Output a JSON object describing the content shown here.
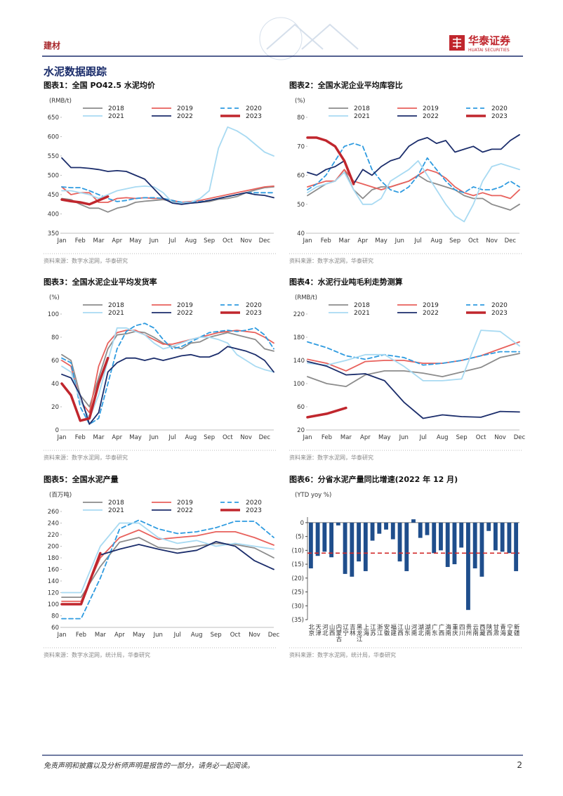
{
  "header": {
    "section": "建材",
    "logo": "华泰证券",
    "logo_en": "HUATAI SECURITIES"
  },
  "heading": "水泥数据跟踪",
  "chart_data": [
    {
      "type": "line",
      "title": "图表1：全国 PO42.5 水泥均价",
      "unit": "(RMB/t)",
      "source": "资料来源：数字水泥网，华泰研究",
      "categories": [
        "Jan",
        null,
        "Feb",
        null,
        "Mar",
        null,
        "Apr",
        null,
        "May",
        null,
        "Jun",
        null,
        "Jul",
        null,
        "Aug",
        null,
        "Sep",
        null,
        "Oct",
        null,
        "Nov",
        null,
        "Dec",
        null
      ],
      "ylim": [
        350,
        650
      ],
      "yticks": [
        350,
        400,
        450,
        500,
        550,
        600,
        650
      ],
      "series": [
        {
          "name": "2018",
          "color": "#8c8c8c",
          "values": [
            440,
            437,
            425,
            415,
            415,
            405,
            415,
            420,
            430,
            433,
            435,
            437,
            432,
            428,
            428,
            430,
            432,
            438,
            440,
            445,
            455,
            462,
            468,
            470
          ]
        },
        {
          "name": "2019",
          "color": "#e8615c",
          "values": [
            470,
            450,
            455,
            455,
            430,
            430,
            440,
            442,
            440,
            442,
            440,
            440,
            435,
            430,
            432,
            435,
            440,
            445,
            450,
            455,
            460,
            465,
            470,
            472
          ]
        },
        {
          "name": "2020",
          "color": "#2e9be0",
          "dashed": true,
          "values": [
            470,
            468,
            468,
            460,
            450,
            440,
            432,
            435,
            440,
            442,
            442,
            440,
            435,
            430,
            430,
            432,
            435,
            440,
            445,
            450,
            455,
            455,
            455,
            455
          ]
        },
        {
          "name": "2021",
          "color": "#a8daf2",
          "values": [
            460,
            460,
            455,
            450,
            440,
            450,
            460,
            465,
            470,
            472,
            470,
            455,
            430,
            428,
            430,
            440,
            460,
            570,
            625,
            615,
            600,
            580,
            560,
            550
          ]
        },
        {
          "name": "2022",
          "color": "#1b2d6b",
          "values": [
            545,
            520,
            520,
            518,
            515,
            510,
            512,
            510,
            500,
            490,
            465,
            440,
            428,
            425,
            428,
            430,
            435,
            440,
            445,
            450,
            455,
            450,
            448,
            442
          ]
        },
        {
          "name": "2023",
          "color": "#c0262d",
          "bold": true,
          "values": [
            437,
            433,
            430,
            425,
            435,
            445,
            null,
            null,
            null,
            null,
            null,
            null,
            null,
            null,
            null,
            null,
            null,
            null,
            null,
            null,
            null,
            null,
            null,
            null
          ]
        }
      ]
    },
    {
      "type": "line",
      "title": "图表2：全国水泥企业平均库容比",
      "unit": "(%)",
      "source": "资料来源：数字水泥网，华泰研究",
      "categories": [
        "Jan",
        null,
        "Feb",
        null,
        "Mar",
        null,
        "Apr",
        null,
        "May",
        null,
        "Jun",
        null,
        "Jul",
        null,
        "Aug",
        null,
        "Sep",
        null,
        "Oct",
        null,
        "Nov",
        null,
        "Dec",
        null
      ],
      "ylim": [
        40,
        80
      ],
      "yticks": [
        40,
        50,
        60,
        70,
        80
      ],
      "series": [
        {
          "name": "2018",
          "color": "#8c8c8c",
          "values": [
            53,
            55,
            57,
            58,
            62,
            55,
            52,
            55,
            56,
            56,
            57,
            58,
            60,
            58,
            57,
            56,
            55,
            53,
            52,
            52,
            50,
            49,
            48,
            50
          ]
        },
        {
          "name": "2019",
          "color": "#e8615c",
          "values": [
            56,
            57,
            58,
            58,
            62,
            58,
            57,
            56,
            55,
            56,
            57,
            58,
            60,
            62,
            61,
            59,
            56,
            54,
            53,
            54,
            53,
            53,
            52,
            55
          ]
        },
        {
          "name": "2020",
          "color": "#2e9be0",
          "dashed": true,
          "values": [
            55,
            57,
            60,
            65,
            70,
            71,
            70,
            62,
            58,
            55,
            54,
            56,
            60,
            66,
            62,
            58,
            55,
            54,
            56,
            55,
            55,
            56,
            58,
            56
          ]
        },
        {
          "name": "2021",
          "color": "#a8daf2",
          "values": [
            54,
            56,
            57,
            58,
            61,
            55,
            50,
            50,
            52,
            58,
            60,
            62,
            65,
            60,
            55,
            50,
            46,
            44,
            50,
            58,
            63,
            64,
            63,
            62
          ]
        },
        {
          "name": "2022",
          "color": "#1b2d6b",
          "values": [
            61,
            60,
            62,
            63,
            65,
            57,
            62,
            60,
            63,
            65,
            66,
            70,
            72,
            73,
            71,
            72,
            68,
            69,
            70,
            68,
            69,
            69,
            72,
            74
          ]
        },
        {
          "name": "2023",
          "color": "#c0262d",
          "bold": true,
          "values": [
            73,
            73,
            72,
            70,
            65,
            57,
            null,
            null,
            null,
            null,
            null,
            null,
            null,
            null,
            null,
            null,
            null,
            null,
            null,
            null,
            null,
            null,
            null,
            null
          ]
        }
      ]
    },
    {
      "type": "line",
      "title": "图表3：全国水泥企业平均发货率",
      "unit": "(%)",
      "source": "资料来源：数字水泥网，华泰研究",
      "categories": [
        "Jan",
        null,
        "Feb",
        null,
        "Mar",
        null,
        "Apr",
        null,
        "May",
        null,
        "Jun",
        null,
        "Jul",
        null,
        "Aug",
        null,
        "Sep",
        null,
        "Oct",
        null,
        "Nov",
        null,
        "Dec",
        null
      ],
      "ylim": [
        0,
        100
      ],
      "yticks": [
        0,
        20,
        40,
        60,
        80,
        100
      ],
      "series": [
        {
          "name": "2018",
          "color": "#8c8c8c",
          "values": [
            65,
            60,
            30,
            20,
            45,
            70,
            82,
            83,
            85,
            84,
            80,
            75,
            72,
            70,
            75,
            76,
            80,
            82,
            84,
            82,
            80,
            78,
            70,
            68
          ]
        },
        {
          "name": "2019",
          "color": "#e8615c",
          "values": [
            60,
            55,
            25,
            15,
            55,
            75,
            84,
            86,
            86,
            82,
            78,
            74,
            74,
            76,
            78,
            80,
            82,
            84,
            85,
            86,
            85,
            84,
            80,
            75
          ]
        },
        {
          "name": "2020",
          "color": "#2e9be0",
          "dashed": true,
          "values": [
            62,
            58,
            20,
            5,
            10,
            40,
            70,
            85,
            90,
            92,
            88,
            78,
            70,
            72,
            76,
            80,
            84,
            85,
            86,
            85,
            86,
            88,
            82,
            70
          ]
        },
        {
          "name": "2021",
          "color": "#a8daf2",
          "values": [
            55,
            50,
            25,
            10,
            30,
            60,
            88,
            88,
            85,
            82,
            75,
            70,
            72,
            75,
            78,
            80,
            80,
            78,
            75,
            65,
            60,
            55,
            52,
            50
          ]
        },
        {
          "name": "2022",
          "color": "#1b2d6b",
          "values": [
            48,
            45,
            30,
            5,
            15,
            50,
            58,
            62,
            62,
            60,
            62,
            60,
            62,
            64,
            65,
            63,
            63,
            66,
            72,
            70,
            68,
            65,
            60,
            50
          ]
        },
        {
          "name": "2023",
          "color": "#c0262d",
          "bold": true,
          "values": [
            40,
            30,
            8,
            10,
            40,
            62,
            null,
            null,
            null,
            null,
            null,
            null,
            null,
            null,
            null,
            null,
            null,
            null,
            null,
            null,
            null,
            null,
            null,
            null
          ]
        }
      ]
    },
    {
      "type": "line",
      "title": "图表4：水泥行业吨毛利走势测算",
      "unit": "(RMB/t)",
      "source": "资料来源：数字水泥网，华泰研究",
      "categories": [
        "Jan",
        "Feb",
        "Mar",
        "Apr",
        "May",
        "Jun",
        "Jul",
        "Aug",
        "Sep",
        "Oct",
        "Nov",
        "Dec"
      ],
      "ylim": [
        20,
        220
      ],
      "yticks": [
        20,
        60,
        100,
        140,
        180,
        220
      ],
      "series": [
        {
          "name": "2018",
          "color": "#8c8c8c",
          "values": [
            112,
            100,
            95,
            115,
            122,
            122,
            118,
            112,
            120,
            128,
            145,
            152
          ]
        },
        {
          "name": "2019",
          "color": "#e8615c",
          "values": [
            142,
            135,
            122,
            138,
            140,
            140,
            135,
            135,
            140,
            148,
            160,
            172
          ]
        },
        {
          "name": "2020",
          "color": "#2e9be0",
          "dashed": true,
          "values": [
            172,
            162,
            148,
            142,
            150,
            145,
            132,
            135,
            140,
            148,
            155,
            155
          ]
        },
        {
          "name": "2021",
          "color": "#a8daf2",
          "values": [
            135,
            132,
            140,
            150,
            150,
            130,
            105,
            105,
            108,
            192,
            190,
            165
          ]
        },
        {
          "name": "2022",
          "color": "#1b2d6b",
          "values": [
            138,
            130,
            115,
            117,
            105,
            68,
            40,
            46,
            43,
            42,
            52,
            51
          ]
        },
        {
          "name": "2023",
          "color": "#c0262d",
          "bold": true,
          "values": [
            42,
            48,
            58,
            null,
            null,
            null,
            null,
            null,
            null,
            null,
            null,
            null
          ]
        }
      ]
    },
    {
      "type": "line",
      "title": "图表5：全国水泥产量",
      "unit": "(百万吨)",
      "source": "资料来源：数字水泥网，统计局，华泰研究",
      "categories": [
        "Jan",
        "Feb",
        "Mar",
        "Apr",
        "May",
        "Jun",
        "Jul",
        "Aug",
        "Sep",
        "Oct",
        "Nov",
        "Dec"
      ],
      "ylim": [
        60,
        260
      ],
      "yticks": [
        60,
        80,
        100,
        120,
        140,
        160,
        180,
        200,
        220,
        240,
        260
      ],
      "series": [
        {
          "name": "2018",
          "color": "#8c8c8c",
          "values": [
            112,
            112,
            165,
            207,
            215,
            198,
            195,
            200,
            205,
            203,
            197,
            180
          ]
        },
        {
          "name": "2019",
          "color": "#e8615c",
          "values": [
            105,
            105,
            180,
            215,
            228,
            212,
            215,
            218,
            225,
            225,
            215,
            202
          ]
        },
        {
          "name": "2020",
          "color": "#2e9be0",
          "dashed": true,
          "values": [
            75,
            75,
            145,
            230,
            245,
            230,
            222,
            225,
            232,
            243,
            243,
            215
          ]
        },
        {
          "name": "2021",
          "color": "#a8daf2",
          "values": [
            120,
            120,
            200,
            240,
            240,
            215,
            205,
            210,
            200,
            205,
            200,
            195
          ]
        },
        {
          "name": "2022",
          "color": "#1b2d6b",
          "values": [
            100,
            100,
            185,
            195,
            203,
            195,
            188,
            193,
            208,
            200,
            175,
            160
          ]
        },
        {
          "name": "2023",
          "color": "#c0262d",
          "bold": true,
          "values": [
            100,
            100,
            188,
            null,
            null,
            null,
            null,
            null,
            null,
            null,
            null,
            null
          ]
        }
      ]
    },
    {
      "type": "bar",
      "title": "图表6：分省水泥产量同比增速(2022 年 12 月)",
      "unit": "(YTD yoy %)",
      "source": "资料来源：数字水泥网，统计局，华泰研究",
      "categories": [
        "北京",
        "天津",
        "河北",
        "山西",
        "内蒙古",
        "辽宁",
        "吉林",
        "黑龙江",
        "上海",
        "江苏",
        "浙江",
        "安徽",
        "福建",
        "江西",
        "山东",
        "河南",
        "湖北",
        "湖南",
        "广东",
        "广西",
        "海南",
        "重庆",
        "四川",
        "贵州",
        "云南",
        "西藏",
        "陕西",
        "甘肃",
        "青海",
        "宁夏",
        "新疆"
      ],
      "values": [
        -16.5,
        -12,
        -10.5,
        -12.5,
        -1,
        -18.5,
        -19.5,
        -14,
        -17.5,
        -6.5,
        -4,
        -2.5,
        -6,
        -14,
        -17.5,
        1.2,
        -5.5,
        -4.5,
        -11,
        -10,
        -16,
        -15,
        -9,
        -31.5,
        -16.5,
        -19.5,
        -3,
        -10,
        -10.5,
        -11,
        -17.5
      ],
      "color": "#1f4e8c",
      "reference_line": -11,
      "reference_color": "#d12a2a",
      "ylim": [
        -35,
        2
      ],
      "yticks": [
        0,
        {
          "value": -5,
          "label": "(5)"
        },
        {
          "value": -10,
          "label": "(10)"
        },
        {
          "value": -15,
          "label": "(15)"
        },
        {
          "value": -20,
          "label": "(20)"
        },
        {
          "value": -25,
          "label": "(25)"
        },
        {
          "value": -30,
          "label": "(30)"
        },
        {
          "value": -35,
          "label": "(35)"
        }
      ]
    }
  ],
  "footer": {
    "disclaimer": "免责声明和披露以及分析师声明是报告的一部分，请务必一起阅读。",
    "page": 2
  }
}
